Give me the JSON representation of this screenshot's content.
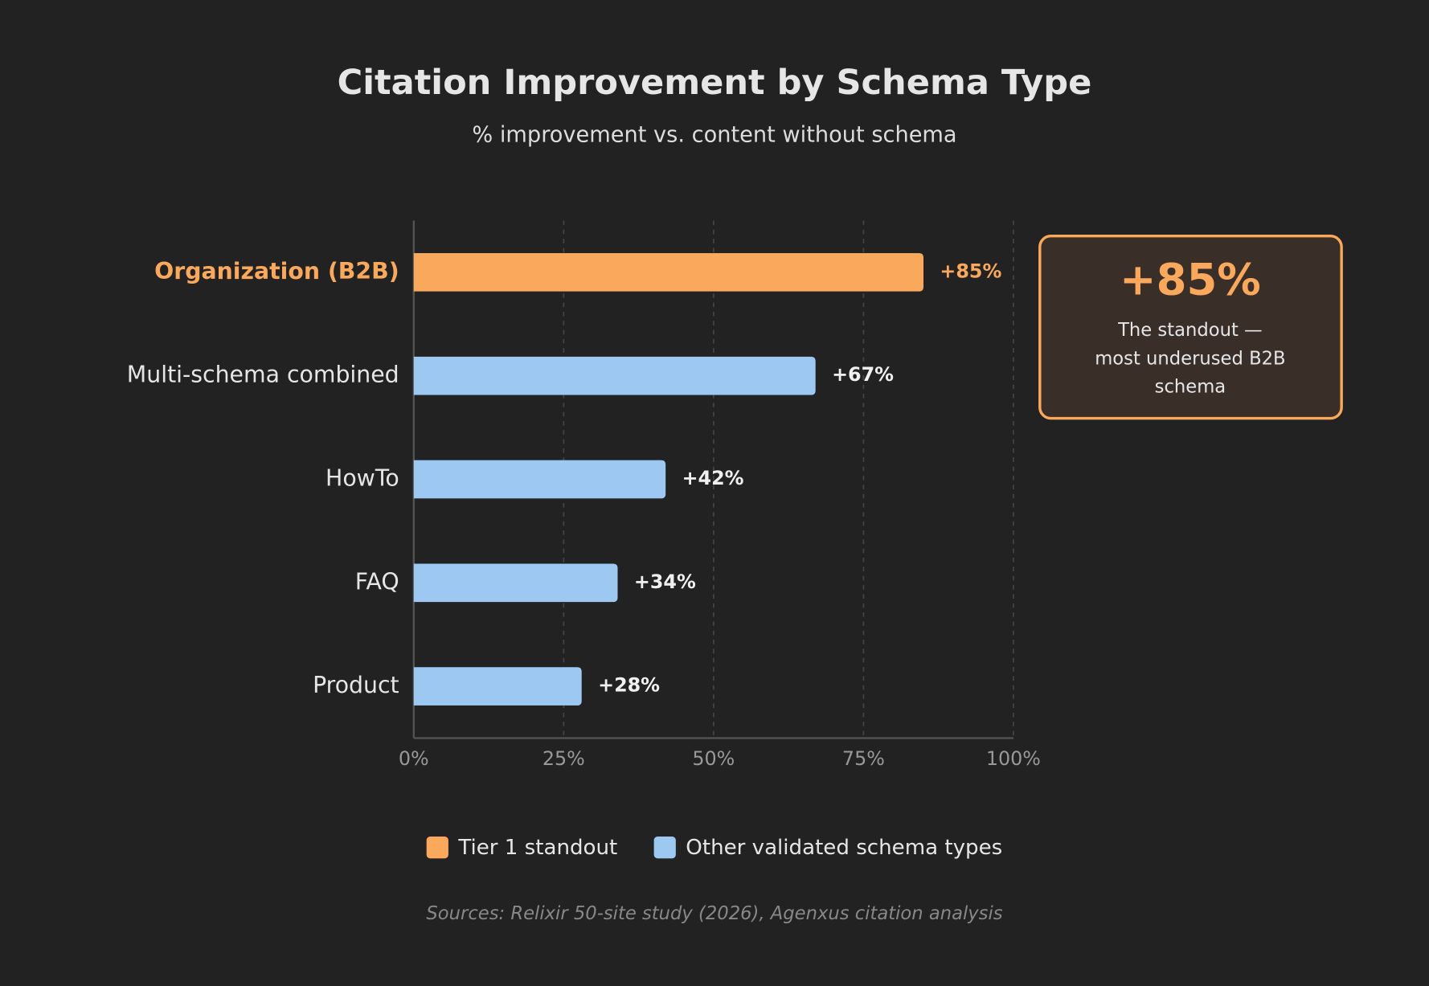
{
  "chart_data": {
    "type": "hbar",
    "title": "Citation Improvement by Schema Type",
    "subtitle": "% improvement vs. content without schema",
    "categories": [
      "Organization (B2B)",
      "Multi-schema combined",
      "HowTo",
      "FAQ",
      "Product"
    ],
    "values": [
      85,
      67,
      42,
      34,
      28
    ],
    "value_labels": [
      "+85%",
      "+67%",
      "+42%",
      "+34%",
      "+28%"
    ],
    "colors": [
      "#f9a85c",
      "#9cc8f2",
      "#9cc8f2",
      "#9cc8f2",
      "#9cc8f2"
    ],
    "xlim": [
      0,
      100
    ],
    "xticks": [
      {
        "value": 0,
        "label": "0%"
      },
      {
        "value": 25,
        "label": "25%"
      },
      {
        "value": 50,
        "label": "50%"
      },
      {
        "value": 75,
        "label": "75%"
      },
      {
        "value": 100,
        "label": "100%"
      }
    ],
    "grid": true,
    "legend": [
      {
        "label": "Tier 1 standout",
        "color": "#f9a85c"
      },
      {
        "label": "Other validated schema types",
        "color": "#9cc8f2"
      }
    ],
    "annotation": {
      "headline": "+85%",
      "lines": [
        "The standout —",
        "most underused B2B",
        "schema"
      ]
    },
    "source": "Sources: Relixir 50-site study (2026), Agenxus citation analysis"
  }
}
